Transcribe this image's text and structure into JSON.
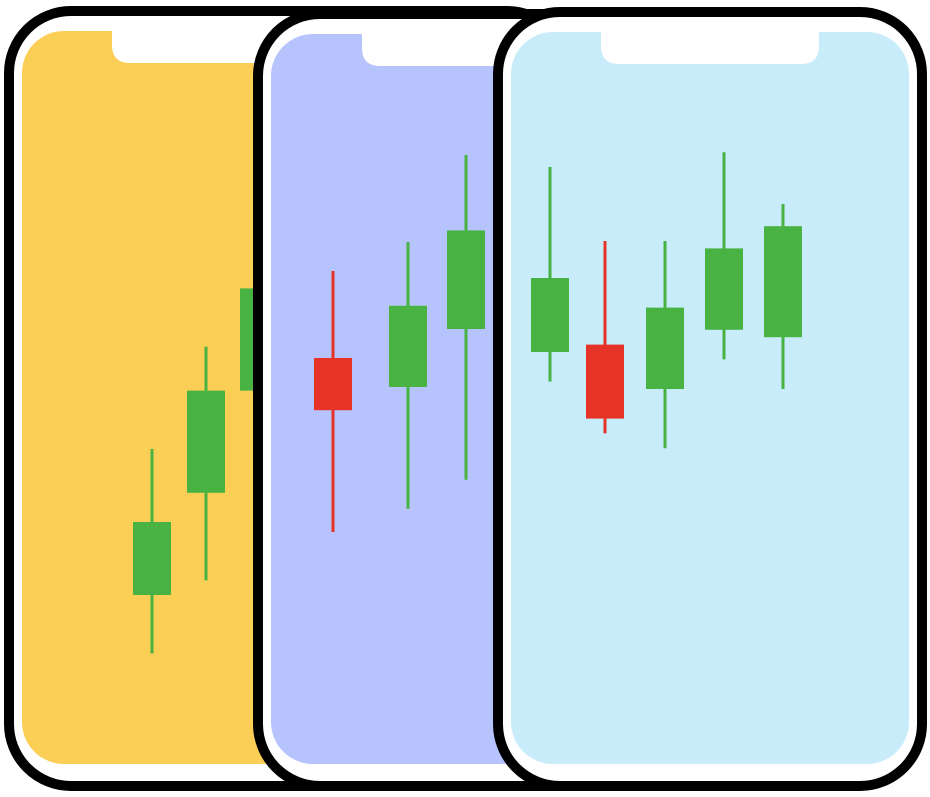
{
  "colors": {
    "background": "#ffffff",
    "frame": "#000000",
    "bezel": "#ffffff",
    "bullish": "#48b243",
    "bearish": "#e53427"
  },
  "phones": [
    {
      "id": "phone-yellow",
      "screen_color": "#fbcf55",
      "candles": [
        {
          "direction": "up",
          "open": 1.0,
          "close": 2.0,
          "low": 0.2,
          "high": 3.0
        },
        {
          "direction": "up",
          "open": 2.4,
          "close": 3.8,
          "low": 1.2,
          "high": 4.4
        },
        {
          "direction": "up",
          "open": 3.8,
          "close": 5.2,
          "low": 2.4,
          "high": 6.0
        }
      ]
    },
    {
      "id": "phone-periwinkle",
      "screen_color": "#b7c3fd",
      "candles": [
        {
          "direction": "down",
          "open": 4.0,
          "close": 3.1,
          "low": 1.0,
          "high": 5.5
        },
        {
          "direction": "up",
          "open": 3.5,
          "close": 4.9,
          "low": 1.4,
          "high": 6.0
        },
        {
          "direction": "up",
          "open": 4.5,
          "close": 6.2,
          "low": 1.9,
          "high": 7.5
        }
      ]
    },
    {
      "id": "phone-lightblue",
      "screen_color": "#c9ecfb",
      "candles": [
        {
          "direction": "up",
          "open": 4.5,
          "close": 5.5,
          "low": 4.1,
          "high": 7.0
        },
        {
          "direction": "down",
          "open": 4.6,
          "close": 3.6,
          "low": 3.4,
          "high": 6.0
        },
        {
          "direction": "up",
          "open": 4.0,
          "close": 5.1,
          "low": 3.2,
          "high": 6.0
        },
        {
          "direction": "up",
          "open": 4.8,
          "close": 5.9,
          "low": 4.4,
          "high": 7.2
        },
        {
          "direction": "up",
          "open": 4.7,
          "close": 6.2,
          "low": 4.0,
          "high": 6.5
        }
      ]
    }
  ]
}
